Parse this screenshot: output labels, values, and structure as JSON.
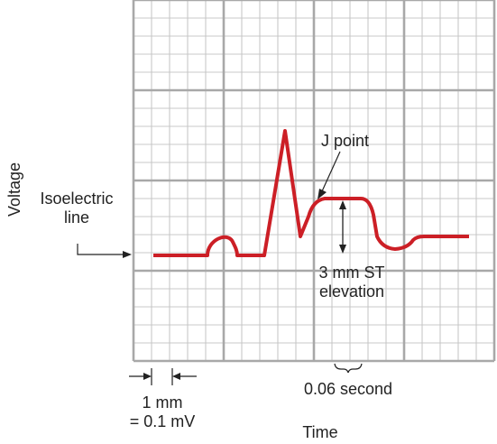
{
  "labels": {
    "y_axis": "Voltage",
    "x_axis": "Time",
    "isoelectric_line": [
      "Isoelectric",
      "line"
    ],
    "j_point": "J point",
    "st_elevation": [
      "3 mm ST",
      "elevation"
    ],
    "scale_vertical": [
      "1 mm",
      "= 0.1 mV"
    ],
    "scale_horizontal": "0.06 second"
  },
  "colors": {
    "trace": "#cc1f26",
    "grid_minor": "#c8c8c8",
    "grid_major": "#a8a8a8",
    "ink": "#222222"
  }
}
